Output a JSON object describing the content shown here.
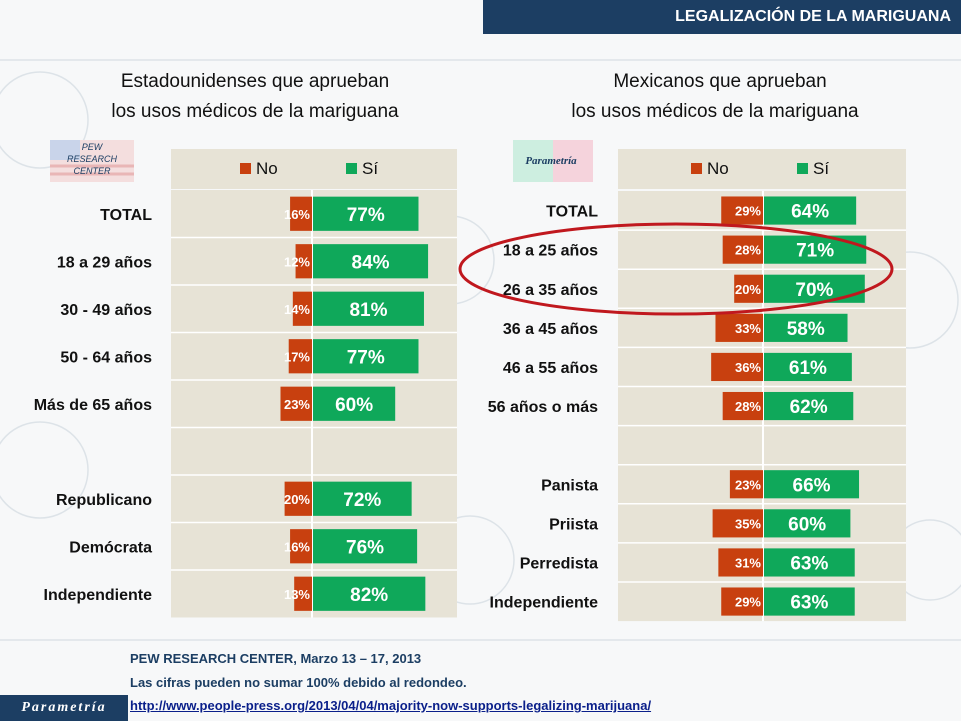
{
  "header": {
    "title": "LEGALIZACIÓN DE LA MARIGUANA"
  },
  "left_panel": {
    "title_line1": "Estadounidenses que aprueban",
    "title_line2": "los usos médicos de la mariguana",
    "logo_text": [
      "PEW",
      "RESEARCH",
      "CENTER"
    ]
  },
  "right_panel": {
    "title_line1": "Mexicanos que aprueban",
    "title_line2": "los usos médicos de la mariguana",
    "logo_text": "Parametría"
  },
  "colors": {
    "no": "#c8400f",
    "si": "#0fa85a",
    "header": "#1c3e63",
    "panel": "#e7e3d6",
    "oval": "#c0181e"
  },
  "chart_data": [
    {
      "type": "bar",
      "orientation": "horizontal-diverging",
      "legend": [
        "No",
        "Sí"
      ],
      "categories": [
        "TOTAL",
        "18 a 29 años",
        "30 - 49 años",
        "50 - 64 años",
        "Más de 65 años",
        "",
        "Republicano",
        "Demócrata",
        "Independiente"
      ],
      "series": [
        {
          "name": "No",
          "values": [
            16,
            12,
            14,
            17,
            23,
            null,
            20,
            16,
            13
          ]
        },
        {
          "name": "Sí",
          "values": [
            77,
            84,
            81,
            77,
            60,
            null,
            72,
            76,
            82
          ]
        }
      ]
    },
    {
      "type": "bar",
      "orientation": "horizontal-diverging",
      "legend": [
        "No",
        "Sí"
      ],
      "categories": [
        "TOTAL",
        "18 a 25 años",
        "26 a 35 años",
        "36 a 45 años",
        "46 a 55 años",
        "56 años o más",
        "",
        "Panista",
        "Priista",
        "Perredista",
        "Independiente"
      ],
      "series": [
        {
          "name": "No",
          "values": [
            29,
            28,
            20,
            33,
            36,
            28,
            null,
            23,
            35,
            31,
            29
          ]
        },
        {
          "name": "Sí",
          "values": [
            64,
            71,
            70,
            58,
            61,
            62,
            null,
            66,
            60,
            63,
            63
          ]
        }
      ],
      "highlighted_rows": [
        "18 a 25 años",
        "26 a 35 años"
      ]
    }
  ],
  "footer": {
    "source": "PEW RESEARCH CENTER, Marzo 13 – 17, 2013",
    "note": "Las cifras pueden no sumar 100% debido al redondeo.",
    "link": "http://www.people-press.org/2013/04/04/majority-now-supports-legalizing-marijuana/",
    "brand": "Parametría"
  }
}
